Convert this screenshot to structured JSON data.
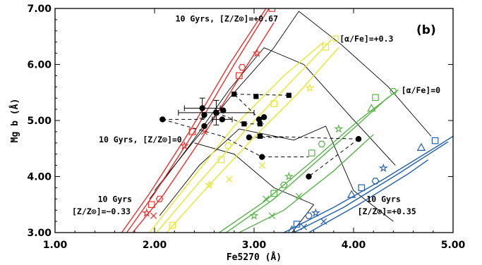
{
  "chart_data": {
    "type": "line",
    "panel_label": "(b)",
    "xlabel": "Fe5270 (Å)",
    "ylabel": "Mg b (Å)",
    "xlim": [
      1.0,
      5.0
    ],
    "ylim": [
      3.0,
      7.0
    ],
    "xticks": [
      {
        "v": 1.0,
        "label": "1.00"
      },
      {
        "v": 2.0,
        "label": "2.00"
      },
      {
        "v": 3.0,
        "label": "3.00"
      },
      {
        "v": 4.0,
        "label": "4.00"
      },
      {
        "v": 5.0,
        "label": "5.00"
      }
    ],
    "yticks": [
      {
        "v": 3.0,
        "label": "3.00"
      },
      {
        "v": 4.0,
        "label": "4.00"
      },
      {
        "v": 5.0,
        "label": "5.00"
      },
      {
        "v": 6.0,
        "label": "6.00"
      },
      {
        "v": 7.0,
        "label": "7.00"
      }
    ],
    "annotations": [
      {
        "text": "10 Gyrs, [Z/Z⊙]=+0.67",
        "x": 2.21,
        "y": 6.77
      },
      {
        "text": "[α/Fe]=+0.3",
        "x": 3.86,
        "y": 6.41
      },
      {
        "text": "[α/Fe]=0",
        "x": 4.48,
        "y": 5.49
      },
      {
        "text": "10 Gyrs, [Z/Z⊙]=0",
        "x": 1.44,
        "y": 4.61
      },
      {
        "text": "10 Gyrs",
        "x": 1.43,
        "y": 3.55
      },
      {
        "text": "[Z/Z⊙]=−0.33",
        "x": 1.17,
        "y": 3.33
      },
      {
        "text": "10 Gyrs",
        "x": 4.13,
        "y": 3.55
      },
      {
        "text": "[Z/Z⊙]=+0.35",
        "x": 4.04,
        "y": 3.33
      }
    ],
    "model_groups": [
      {
        "color": "#e8312b",
        "lines": [
          {
            "x": [
              1.67,
              1.95,
              2.35,
              2.75,
              3.12
            ],
            "y": [
              3.0,
              3.7,
              4.8,
              6.0,
              7.0
            ]
          },
          {
            "x": [
              1.72,
              2.0,
              2.4,
              2.8,
              3.15
            ],
            "y": [
              3.0,
              3.7,
              4.8,
              6.0,
              7.0
            ]
          },
          {
            "x": [
              1.78,
              2.08,
              2.48,
              2.9,
              3.2
            ],
            "y": [
              3.0,
              3.65,
              4.7,
              5.9,
              6.75
            ]
          }
        ],
        "markers": [
          {
            "x": 2.05,
            "y": 3.6,
            "s": "hex"
          },
          {
            "x": 1.97,
            "y": 3.5,
            "s": "sq"
          },
          {
            "x": 1.92,
            "y": 3.35,
            "s": "star"
          },
          {
            "x": 1.99,
            "y": 3.3,
            "s": "x"
          },
          {
            "x": 2.38,
            "y": 4.8,
            "s": "sq"
          },
          {
            "x": 2.3,
            "y": 4.55,
            "s": "star"
          },
          {
            "x": 2.5,
            "y": 4.8,
            "s": "x"
          },
          {
            "x": 2.88,
            "y": 5.95,
            "s": "hex"
          },
          {
            "x": 2.85,
            "y": 5.8,
            "s": "sq"
          },
          {
            "x": 3.03,
            "y": 6.2,
            "s": "star"
          },
          {
            "x": 3.18,
            "y": 7.0,
            "s": "sq"
          }
        ]
      },
      {
        "color": "#e6e62e",
        "lines": [
          {
            "x": [
              1.95,
              2.35,
              2.8,
              3.3,
              3.7
            ],
            "y": [
              3.0,
              3.9,
              4.9,
              5.8,
              6.4
            ]
          },
          {
            "x": [
              2.02,
              2.45,
              2.9,
              3.35,
              3.78
            ],
            "y": [
              3.0,
              3.9,
              4.8,
              5.65,
              6.45
            ]
          },
          {
            "x": [
              2.12,
              2.55,
              3.0,
              3.45,
              3.85
            ],
            "y": [
              3.0,
              3.85,
              4.7,
              5.5,
              6.3
            ]
          }
        ],
        "markers": [
          {
            "x": 3.82,
            "y": 6.46,
            "s": "hex"
          },
          {
            "x": 3.72,
            "y": 6.31,
            "s": "sq"
          },
          {
            "x": 3.56,
            "y": 5.58,
            "s": "star"
          },
          {
            "x": 3.2,
            "y": 5.3,
            "s": "sq"
          },
          {
            "x": 2.74,
            "y": 4.55,
            "s": "hex"
          },
          {
            "x": 2.67,
            "y": 4.3,
            "s": "sq"
          },
          {
            "x": 2.55,
            "y": 3.85,
            "s": "star"
          },
          {
            "x": 2.75,
            "y": 3.95,
            "s": "x"
          },
          {
            "x": 3.08,
            "y": 4.2,
            "s": "x"
          },
          {
            "x": 2.18,
            "y": 3.13,
            "s": "sq"
          }
        ]
      },
      {
        "color": "#55b546",
        "lines": [
          {
            "x": [
              2.65,
              3.1,
              3.6,
              4.05,
              4.45
            ],
            "y": [
              3.0,
              3.55,
              4.3,
              5.0,
              5.55
            ]
          },
          {
            "x": [
              2.72,
              3.2,
              3.68,
              4.12,
              4.35
            ],
            "y": [
              3.0,
              3.6,
              4.35,
              5.05,
              5.42
            ]
          },
          {
            "x": [
              2.85,
              3.3,
              3.8,
              4.2
            ],
            "y": [
              3.0,
              3.4,
              4.1,
              4.75
            ]
          }
        ],
        "markers": [
          {
            "x": 4.4,
            "y": 5.52,
            "s": "hex"
          },
          {
            "x": 4.22,
            "y": 5.41,
            "s": "sq"
          },
          {
            "x": 4.18,
            "y": 5.22,
            "s": "tri"
          },
          {
            "x": 3.85,
            "y": 4.85,
            "s": "star"
          },
          {
            "x": 3.68,
            "y": 4.58,
            "s": "hex"
          },
          {
            "x": 3.58,
            "y": 4.42,
            "s": "sq"
          },
          {
            "x": 3.35,
            "y": 4.0,
            "s": "star"
          },
          {
            "x": 3.3,
            "y": 3.85,
            "s": "hex"
          },
          {
            "x": 3.2,
            "y": 3.7,
            "s": "sq"
          },
          {
            "x": 3.0,
            "y": 3.3,
            "s": "star"
          },
          {
            "x": 3.12,
            "y": 3.6,
            "s": "x"
          },
          {
            "x": 3.45,
            "y": 3.65,
            "s": "x"
          },
          {
            "x": 3.18,
            "y": 3.3,
            "s": "x"
          }
        ]
      },
      {
        "color": "#1f5fb0",
        "lines": [
          {
            "x": [
              3.3,
              3.8,
              4.3,
              4.85,
              5.0
            ],
            "y": [
              3.0,
              3.45,
              3.95,
              4.55,
              4.72
            ]
          },
          {
            "x": [
              3.4,
              3.9,
              4.45,
              4.95
            ],
            "y": [
              3.0,
              3.45,
              4.05,
              4.62
            ]
          },
          {
            "x": [
              3.55,
              4.05,
              4.55,
              4.75
            ],
            "y": [
              3.0,
              3.5,
              4.05,
              4.3
            ]
          }
        ],
        "markers": [
          {
            "x": 4.82,
            "y": 4.64,
            "s": "sq"
          },
          {
            "x": 4.68,
            "y": 4.52,
            "s": "tri"
          },
          {
            "x": 4.3,
            "y": 4.15,
            "s": "star"
          },
          {
            "x": 4.22,
            "y": 3.92,
            "s": "hex"
          },
          {
            "x": 4.08,
            "y": 3.8,
            "s": "sq"
          },
          {
            "x": 3.98,
            "y": 3.68,
            "s": "tri"
          },
          {
            "x": 3.62,
            "y": 3.35,
            "s": "star"
          },
          {
            "x": 3.55,
            "y": 3.3,
            "s": "hex"
          },
          {
            "x": 3.43,
            "y": 3.15,
            "s": "sq"
          },
          {
            "x": 3.38,
            "y": 3.05,
            "s": "tri"
          },
          {
            "x": 3.7,
            "y": 3.2,
            "s": "x"
          },
          {
            "x": 3.5,
            "y": 3.1,
            "s": "x"
          }
        ]
      }
    ],
    "isochrones": [
      {
        "x": [
          2.0,
          2.38,
          2.8,
          3.2,
          3.45,
          3.88,
          4.35,
          4.78
        ],
        "y": [
          3.75,
          4.6,
          5.5,
          6.3,
          6.95,
          6.35,
          5.6,
          4.72
        ]
      },
      {
        "x": [
          1.95,
          2.35,
          2.75,
          3.1,
          3.5,
          3.98,
          4.42
        ],
        "y": [
          3.6,
          4.55,
          5.55,
          6.3,
          6.0,
          5.05,
          4.2
        ]
      },
      {
        "x": [
          2.05,
          2.45,
          2.85,
          3.4,
          3.72,
          4.0,
          4.4
        ],
        "y": [
          3.3,
          4.2,
          4.85,
          4.65,
          4.9,
          3.75,
          3.2
        ]
      },
      {
        "x": [
          2.4,
          2.8,
          3.2,
          3.6,
          3.38
        ],
        "y": [
          4.6,
          4.4,
          3.8,
          3.5,
          3.0
        ]
      }
    ],
    "data_points": [
      {
        "x": 2.48,
        "y": 5.22,
        "xerr": 0.18,
        "yerr": 0.18
      },
      {
        "x": 2.5,
        "y": 5.1,
        "xerr": 0.0,
        "yerr": 0.0
      },
      {
        "x": 2.08,
        "y": 5.02,
        "xerr": 0.0,
        "yerr": 0.0
      },
      {
        "x": 2.62,
        "y": 5.14,
        "xerr": 0.38,
        "yerr": 0.22
      },
      {
        "x": 2.69,
        "y": 5.18,
        "xerr": 0.0,
        "yerr": 0.0
      },
      {
        "x": 2.68,
        "y": 5.02,
        "xerr": 0.1,
        "yerr": 0.0
      },
      {
        "x": 3.05,
        "y": 5.02,
        "xerr": 0.0,
        "yerr": 0.0
      },
      {
        "x": 2.5,
        "y": 4.9,
        "xerr": 0.0,
        "yerr": 0.0
      },
      {
        "x": 3.1,
        "y": 5.06,
        "xerr": 0.0,
        "yerr": 0.0
      },
      {
        "x": 2.95,
        "y": 4.7,
        "xerr": 0.0,
        "yerr": 0.0
      },
      {
        "x": 3.08,
        "y": 4.35,
        "xerr": 0.0,
        "yerr": 0.0
      },
      {
        "x": 3.55,
        "y": 4.0,
        "xerr": 0.0,
        "yerr": 0.0
      },
      {
        "x": 4.05,
        "y": 4.67,
        "xerr": 0.0,
        "yerr": 0.0
      }
    ],
    "square_points": [
      {
        "x": 2.8,
        "y": 5.47
      },
      {
        "x": 3.02,
        "y": 5.43
      },
      {
        "x": 3.35,
        "y": 5.45
      },
      {
        "x": 2.62,
        "y": 5.14
      },
      {
        "x": 2.9,
        "y": 4.94
      },
      {
        "x": 3.06,
        "y": 4.94
      },
      {
        "x": 3.06,
        "y": 4.72
      }
    ],
    "dashed_links": [
      [
        2.08,
        5.02,
        2.5,
        5.02
      ],
      [
        2.08,
        5.02,
        2.68,
        4.72
      ],
      [
        2.68,
        4.72,
        3.08,
        4.35
      ],
      [
        3.08,
        4.35,
        3.55,
        4.35
      ],
      [
        2.8,
        5.47,
        3.35,
        5.45
      ],
      [
        2.9,
        4.94,
        3.1,
        4.94
      ],
      [
        2.62,
        5.14,
        2.9,
        4.94
      ],
      [
        3.06,
        4.72,
        4.05,
        4.67
      ],
      [
        4.05,
        4.67,
        3.55,
        4.0
      ],
      [
        2.95,
        4.7,
        3.3,
        4.7
      ],
      [
        3.06,
        5.02,
        2.8,
        5.47
      ]
    ]
  }
}
